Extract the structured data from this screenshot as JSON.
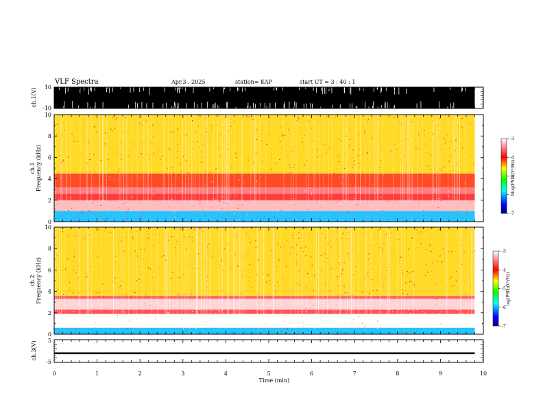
{
  "header": {
    "title": "VLF Spectra",
    "date": "Apr.3  , 2025",
    "station": "station= KAP",
    "start": "start  UT  =   3  : 40 : 1"
  },
  "chart_data": [
    {
      "type": "line",
      "panel": "waveform-ch1",
      "ylabel": "ch.1(V)",
      "ylim": [
        -10,
        10
      ],
      "ytick_labels": [
        "10",
        "-10"
      ],
      "xlim": [
        0,
        10
      ],
      "data_extent_min": 9.8,
      "envelope": "saturated black trace spanning roughly -10 to 10 V",
      "color": "#000000"
    },
    {
      "type": "heatmap",
      "panel": "spectrogram-ch1",
      "ylabel_line1": "ch.1",
      "ylabel_line2": "Frequency  (kHz)",
      "ylim": [
        0,
        10
      ],
      "ytick_labels": [
        "0",
        "2",
        "4",
        "6",
        "8",
        "10"
      ],
      "xlim": [
        0,
        10
      ],
      "bands": [
        {
          "from_khz": 0.0,
          "to_khz": 1.0,
          "level": -6.0
        },
        {
          "from_khz": 1.0,
          "to_khz": 2.0,
          "level": -3.3
        },
        {
          "from_khz": 2.0,
          "to_khz": 2.6,
          "level": -3.9
        },
        {
          "from_khz": 2.6,
          "to_khz": 3.2,
          "level": -3.6
        },
        {
          "from_khz": 3.2,
          "to_khz": 4.5,
          "level": -4.1
        },
        {
          "from_khz": 4.5,
          "to_khz": 10.0,
          "level": -4.5
        }
      ],
      "colorbar": {
        "label": "log(PSD)(V²/Hz)",
        "min": -7,
        "max": -3,
        "tick_labels": [
          "-3",
          "-4",
          "-5",
          "-6",
          "-7"
        ],
        "colors": [
          "#000080",
          "#0000ff",
          "#00ffff",
          "#00ff00",
          "#ffff00",
          "#ff0000",
          "#ffffff"
        ]
      }
    },
    {
      "type": "heatmap",
      "panel": "spectrogram-ch2",
      "ylabel_line1": "ch.2",
      "ylabel_line2": "Frequency  (kHz)",
      "ylim": [
        0,
        10
      ],
      "ytick_labels": [
        "0",
        "2",
        "4",
        "6",
        "8",
        "10"
      ],
      "xlim": [
        0,
        10
      ],
      "bands": [
        {
          "from_khz": 0.0,
          "to_khz": 0.6,
          "level": -6.0
        },
        {
          "from_khz": 0.6,
          "to_khz": 1.9,
          "level": -3.0
        },
        {
          "from_khz": 1.9,
          "to_khz": 2.3,
          "level": -3.8
        },
        {
          "from_khz": 2.3,
          "to_khz": 3.3,
          "level": -3.2
        },
        {
          "from_khz": 3.3,
          "to_khz": 3.6,
          "level": -3.7
        },
        {
          "from_khz": 3.6,
          "to_khz": 10.0,
          "level": -4.5
        }
      ],
      "colorbar": {
        "label": "log(PSD)(V²/Hz)",
        "min": -7,
        "max": -3,
        "tick_labels": [
          "-3",
          "-4",
          "-5",
          "-6",
          "-7"
        ],
        "colors": [
          "#000080",
          "#0000ff",
          "#00ffff",
          "#00ff00",
          "#ffff00",
          "#ff0000",
          "#ffffff"
        ]
      }
    },
    {
      "type": "line",
      "panel": "waveform-ch3",
      "ylabel": "ch.3(V)",
      "ylim": [
        -5,
        5
      ],
      "ytick_labels": [
        "5",
        "-5"
      ],
      "xlim": [
        0,
        10
      ],
      "data_extent_min": 9.8,
      "envelope": "black trace confined near -1 V",
      "trace_center_v": -1,
      "trace_halfwidth_v": 0.4,
      "color": "#000000"
    }
  ],
  "x_axis": {
    "label": "Time  (min)",
    "tick_labels": [
      "0",
      "1",
      "2",
      "3",
      "4",
      "5",
      "6",
      "7",
      "8",
      "9",
      "10"
    ]
  }
}
